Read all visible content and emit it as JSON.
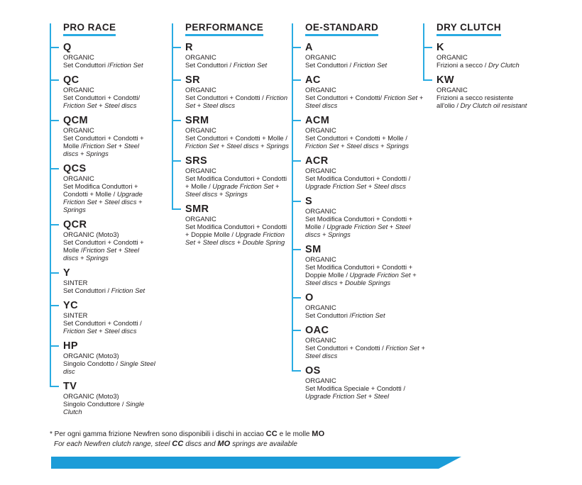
{
  "colors": {
    "accent_blue": "#1b9cd8",
    "rail_blue": "#29abe2",
    "text": "#231f20"
  },
  "footnote": {
    "line1": {
      "a": "* Per ogni gamma frizione Newfren sono disponibili i dischi in acciao ",
      "b": "CC",
      "c": " e le molle ",
      "d": "MO"
    },
    "line2": {
      "a": "For each Newfren clutch range, steel ",
      "b": "CC",
      "c": " discs and ",
      "d": "MO",
      "e": " springs are available"
    }
  },
  "columns": [
    {
      "title": "PRO RACE",
      "items": [
        {
          "code": "Q",
          "type": "ORGANIC",
          "it": "Set Conduttori /",
          "en": "Friction Set"
        },
        {
          "code": "QC",
          "type": "ORGANIC",
          "it": "Set Conduttori + Condotti/ ",
          "en": "Friction Set + Steel discs"
        },
        {
          "code": "QCM",
          "type": "ORGANIC",
          "it": "Set Conduttori + Condotti + Molle /",
          "en": "Friction Set + Steel discs + Springs"
        },
        {
          "code": "QCS",
          "type": "ORGANIC",
          "it": "Set Modifica Conduttori + Condotti + Molle / ",
          "en": "Upgrade Friction Set + Steel discs + Springs"
        },
        {
          "code": "QCR",
          "type": "ORGANIC (Moto3)",
          "it": "Set Conduttori + Condotti + Molle /",
          "en": "Friction Set + Steel discs + Springs"
        },
        {
          "code": "Y",
          "type": "SINTER",
          "it": "Set Conduttori / ",
          "en": "Friction Set"
        },
        {
          "code": "YC",
          "type": "SINTER",
          "it": "Set Conduttori + Condotti / ",
          "en": "Friction Set + Steel discs"
        },
        {
          "code": "HP",
          "type": "ORGANIC (Moto3)",
          "it": "Singolo Condotto / ",
          "en": "Single Steel disc"
        },
        {
          "code": "TV",
          "type": "ORGANIC (Moto3)",
          "it": "Singolo Conduttore / ",
          "en": "Single Clutch"
        }
      ]
    },
    {
      "title": "PERFORMANCE",
      "items": [
        {
          "code": "R",
          "type": "ORGANIC",
          "it": "Set Conduttori / ",
          "en": "Friction Set"
        },
        {
          "code": "SR",
          "type": "ORGANIC",
          "it": "Set Conduttori + Condotti / ",
          "en": "Friction Set + Steel discs"
        },
        {
          "code": "SRM",
          "type": "ORGANIC",
          "it": "Set Conduttori + Condotti + Molle / ",
          "en": "Friction Set + Steel discs + Springs"
        },
        {
          "code": "SRS",
          "type": "ORGANIC",
          "it": "Set Modifica Conduttori + Condotti + Molle / ",
          "en": "Upgrade Friction Set + Steel discs + Springs"
        },
        {
          "code": "SMR",
          "type": "ORGANIC",
          "it": "Set Modifica Conduttori + Condotti + Doppie Molle / ",
          "en": "Upgrade Friction Set + Steel discs + Double Spring"
        }
      ]
    },
    {
      "title": "OE-STANDARD",
      "items": [
        {
          "code": "A",
          "type": "ORGANIC",
          "it": "Set Conduttori / ",
          "en": "Friction Set"
        },
        {
          "code": "AC",
          "type": "ORGANIC",
          "it": "Set Conduttori + Condotti/ ",
          "en": "Friction Set + Steel discs"
        },
        {
          "code": "ACM",
          "type": "ORGANIC",
          "it": "Set Conduttori + Condotti + Molle / ",
          "en": "Friction Set + Steel discs + Springs"
        },
        {
          "code": "ACR",
          "type": "ORGANIC",
          "it": "Set Modifica Conduttori + Condotti / ",
          "en": "Upgrade Friction Set + Steel discs"
        },
        {
          "code": "S",
          "type": "ORGANIC",
          "it": "Set Modifica Conduttori + Condotti + Molle / ",
          "en": "Upgrade Friction Set + Steel discs + Springs"
        },
        {
          "code": "SM",
          "type": "ORGANIC",
          "it": "Set Modifica Conduttori + Condotti + Doppie Molle / ",
          "en": "Upgrade Friction Set + Steel discs + Double Springs"
        },
        {
          "code": "O",
          "type": "ORGANIC",
          "it": "Set Conduttori /",
          "en": "Friction Set"
        },
        {
          "code": "OAC",
          "type": "ORGANIC",
          "it": "Set Conduttori + Condotti / ",
          "en": "Friction Set + Steel discs"
        },
        {
          "code": "OS",
          "type": "ORGANIC",
          "it": "Set Modifica Speciale + Condotti / ",
          "en": "Upgrade Friction Set + Steel"
        }
      ]
    },
    {
      "title": "DRY CLUTCH",
      "items": [
        {
          "code": "K",
          "type": "ORGANIC",
          "it": "Frizioni a secco / ",
          "en": "Dry Clutch"
        },
        {
          "code": "KW",
          "type": "ORGANIC",
          "it": "Frizioni a secco resistente all'olio / ",
          "en": "Dry Clutch oil resistant"
        }
      ]
    }
  ]
}
